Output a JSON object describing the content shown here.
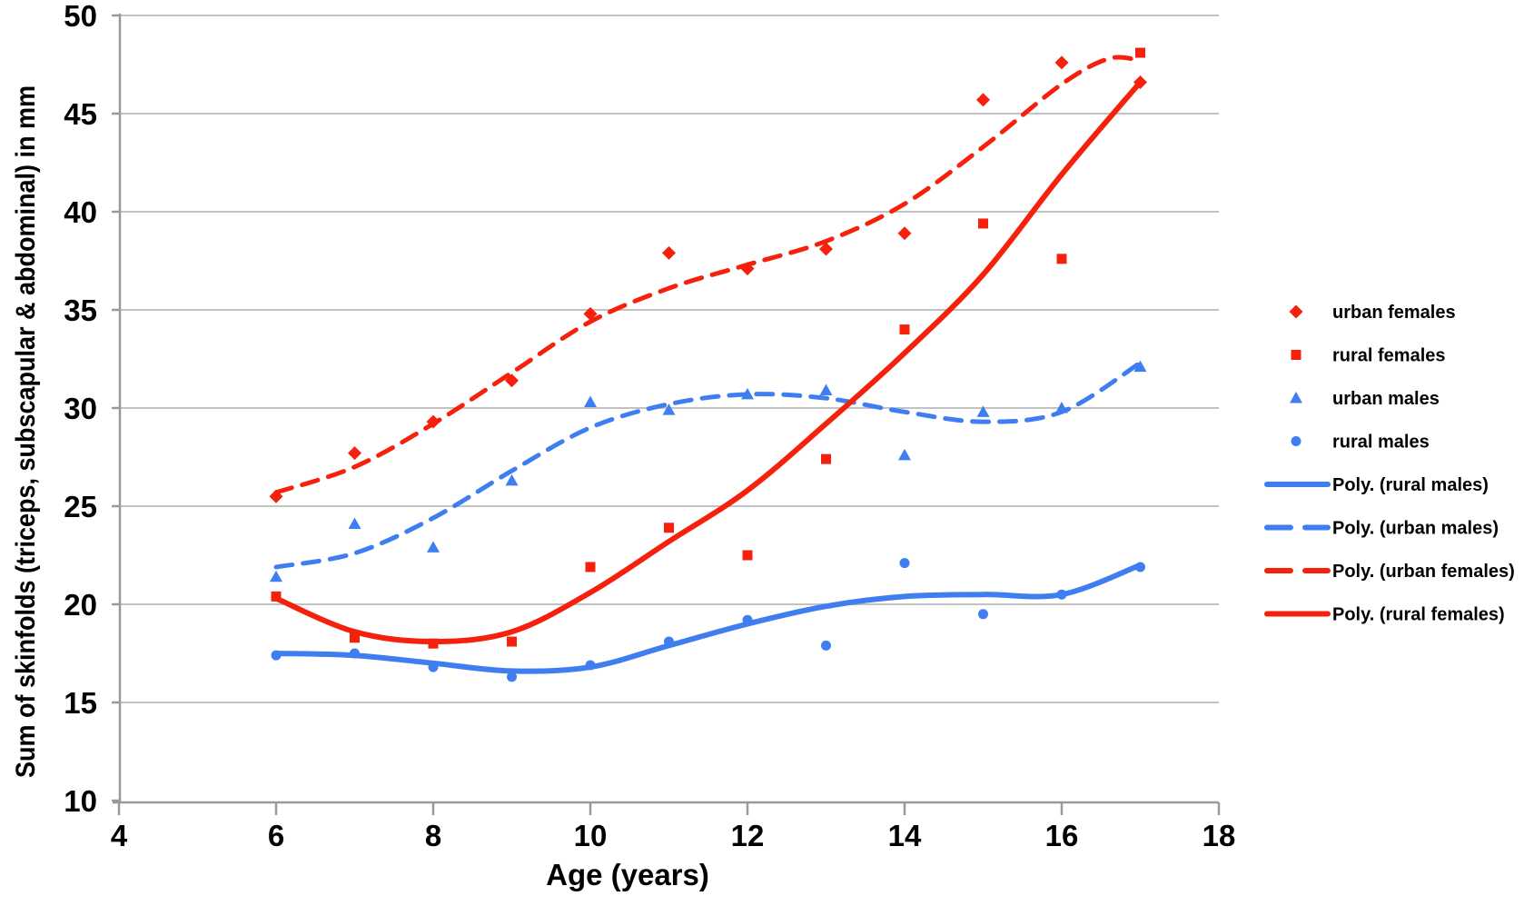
{
  "page": {
    "background": "#ffffff"
  },
  "chart_data": {
    "type": "scatter",
    "title": "",
    "xlabel": "Age (years)",
    "ylabel": "Sum of skinfolds (triceps, subscapular & abdominal) in mm",
    "xlim": [
      4,
      18
    ],
    "ylim": [
      10,
      50
    ],
    "x_ticks": [
      4,
      6,
      8,
      10,
      12,
      14,
      16,
      18
    ],
    "y_ticks": [
      10,
      15,
      20,
      25,
      30,
      35,
      40,
      45,
      50
    ],
    "grid": "horizontal",
    "legend_position": "right",
    "colors": {
      "red": "#f5210d",
      "blue": "#3f7ef0",
      "gridline": "#c2c2c2",
      "axis": "#9a9a9a",
      "text": "#000000"
    },
    "ages": [
      6,
      7,
      8,
      9,
      10,
      11,
      12,
      13,
      14,
      15,
      16,
      17
    ],
    "series": [
      {
        "name": "urban females",
        "marker": "diamond",
        "color": "#f5210d",
        "values": [
          25.5,
          27.7,
          29.3,
          31.4,
          34.8,
          37.9,
          37.1,
          38.1,
          38.9,
          45.7,
          47.6,
          46.6
        ]
      },
      {
        "name": "rural females",
        "marker": "square",
        "color": "#f5210d",
        "values": [
          20.4,
          18.3,
          18.0,
          18.1,
          21.9,
          23.9,
          22.5,
          27.4,
          34.0,
          39.4,
          37.6,
          48.1
        ]
      },
      {
        "name": "urban males",
        "marker": "triangle",
        "color": "#3f7ef0",
        "values": [
          21.4,
          24.1,
          22.9,
          26.3,
          30.3,
          29.9,
          30.7,
          30.9,
          27.6,
          29.8,
          30.0,
          32.1
        ]
      },
      {
        "name": "rural males",
        "marker": "circle",
        "color": "#3f7ef0",
        "values": [
          17.4,
          17.5,
          16.8,
          16.3,
          16.9,
          18.1,
          19.2,
          17.9,
          22.1,
          19.5,
          20.5,
          21.9
        ]
      }
    ],
    "trendlines": [
      {
        "name": "Poly. (rural males)",
        "style": "solid",
        "color": "#3f7ef0",
        "points": [
          [
            6,
            17.5
          ],
          [
            7,
            17.4
          ],
          [
            8,
            17.0
          ],
          [
            9,
            16.6
          ],
          [
            10,
            16.8
          ],
          [
            11,
            17.9
          ],
          [
            12,
            19.0
          ],
          [
            13,
            19.9
          ],
          [
            14,
            20.4
          ],
          [
            15,
            20.5
          ],
          [
            16,
            20.5
          ],
          [
            17,
            22.0
          ]
        ]
      },
      {
        "name": "Poly. (urban males)",
        "style": "dashed",
        "color": "#3f7ef0",
        "points": [
          [
            6,
            21.9
          ],
          [
            7,
            22.6
          ],
          [
            8,
            24.4
          ],
          [
            9,
            26.8
          ],
          [
            10,
            29.0
          ],
          [
            11,
            30.2
          ],
          [
            12,
            30.7
          ],
          [
            13,
            30.5
          ],
          [
            14,
            29.8
          ],
          [
            15,
            29.3
          ],
          [
            16,
            29.8
          ],
          [
            17,
            32.3
          ]
        ]
      },
      {
        "name": "Poly. (urban females)",
        "style": "dashed",
        "color": "#f5210d",
        "points": [
          [
            6,
            25.7
          ],
          [
            7,
            27.0
          ],
          [
            8,
            29.2
          ],
          [
            9,
            31.8
          ],
          [
            10,
            34.4
          ],
          [
            11,
            36.1
          ],
          [
            12,
            37.3
          ],
          [
            13,
            38.5
          ],
          [
            14,
            40.4
          ],
          [
            15,
            43.3
          ],
          [
            16,
            46.5
          ],
          [
            16.6,
            47.8
          ],
          [
            17,
            47.7
          ]
        ]
      },
      {
        "name": "Poly. (rural females)",
        "style": "solid",
        "color": "#f5210d",
        "points": [
          [
            6,
            20.3
          ],
          [
            7,
            18.6
          ],
          [
            8,
            18.1
          ],
          [
            9,
            18.6
          ],
          [
            10,
            20.6
          ],
          [
            11,
            23.2
          ],
          [
            12,
            25.8
          ],
          [
            13,
            29.2
          ],
          [
            14,
            32.8
          ],
          [
            15,
            36.8
          ],
          [
            16,
            41.9
          ],
          [
            17,
            46.6
          ]
        ]
      }
    ],
    "legend": [
      {
        "kind": "marker",
        "marker": "diamond",
        "color": "#f5210d",
        "label": "urban females"
      },
      {
        "kind": "marker",
        "marker": "square",
        "color": "#f5210d",
        "label": "rural females"
      },
      {
        "kind": "marker",
        "marker": "triangle",
        "color": "#3f7ef0",
        "label": "urban males"
      },
      {
        "kind": "marker",
        "marker": "circle",
        "color": "#3f7ef0",
        "label": "rural males"
      },
      {
        "kind": "line",
        "style": "solid",
        "color": "#3f7ef0",
        "label": "Poly. (rural males)"
      },
      {
        "kind": "line",
        "style": "dashed",
        "color": "#3f7ef0",
        "label": "Poly. (urban males)"
      },
      {
        "kind": "line",
        "style": "dashed",
        "color": "#f5210d",
        "label": "Poly. (urban females)"
      },
      {
        "kind": "line",
        "style": "solid",
        "color": "#f5210d",
        "label": "Poly. (rural females)"
      }
    ]
  }
}
